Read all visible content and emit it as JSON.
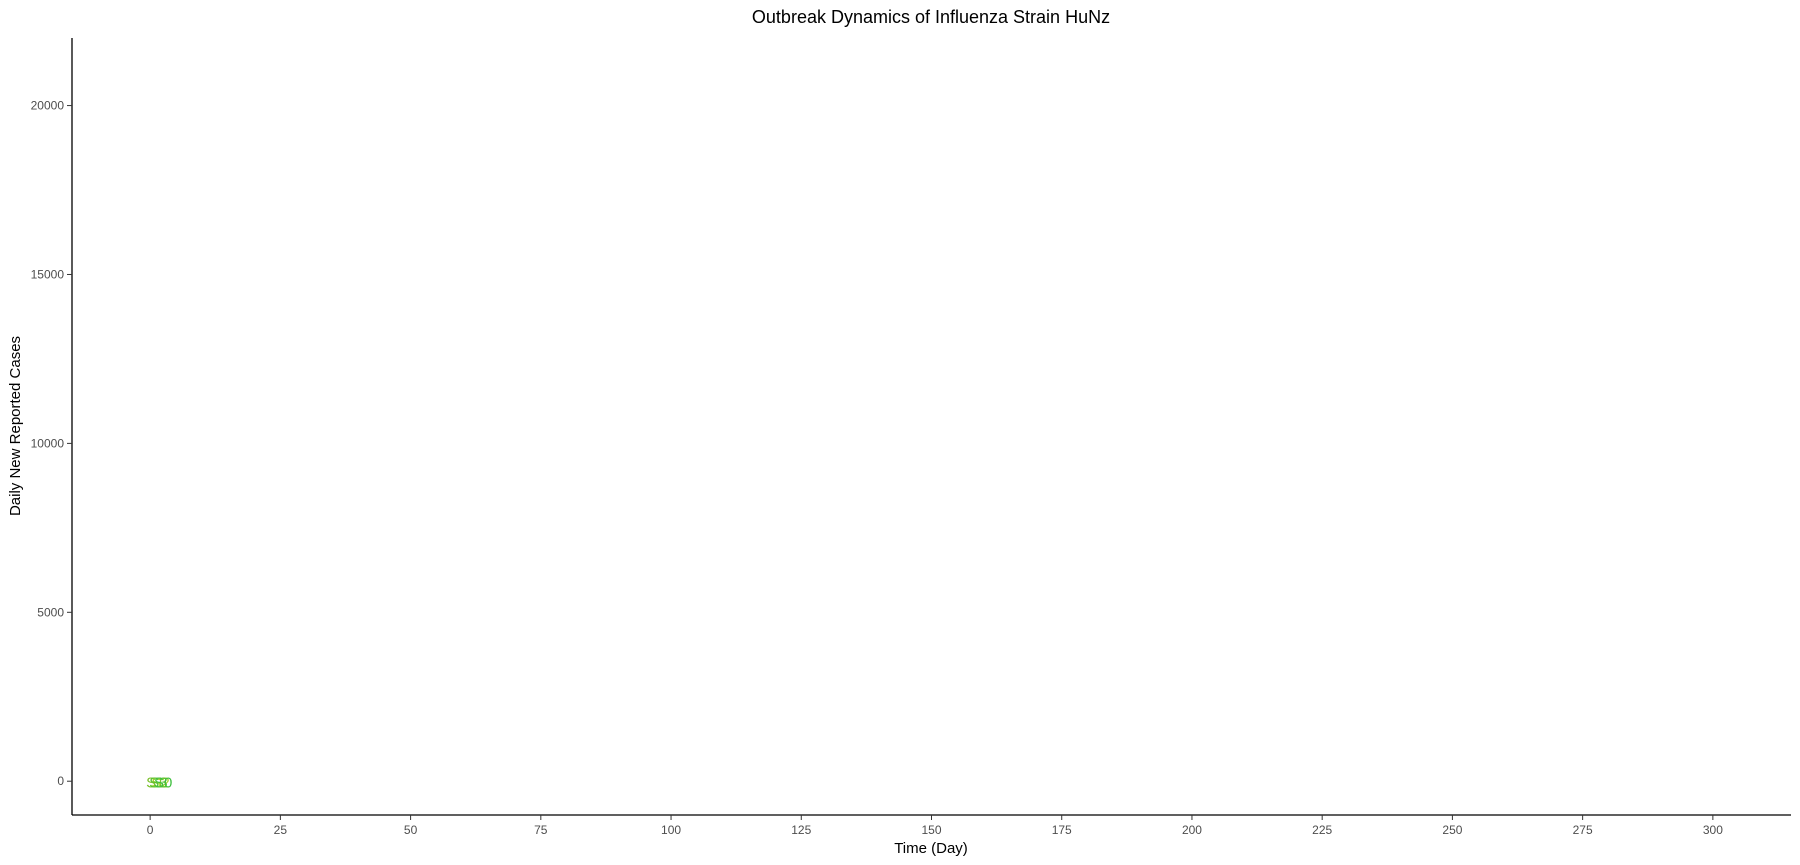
{
  "chart_data": {
    "type": "scatter",
    "title": "Outbreak Dynamics of Influenza Strain HuNz",
    "xlabel": "Time (Day)",
    "ylabel": "Daily New Reported Cases",
    "xlim": [
      -15,
      315
    ],
    "ylim": [
      -1000,
      22000
    ],
    "x_ticks": [
      0,
      25,
      50,
      75,
      100,
      125,
      150,
      175,
      200,
      225,
      250,
      275,
      300
    ],
    "y_ticks": [
      0,
      5000,
      10000,
      15000,
      20000
    ],
    "grid": false,
    "legend": "none",
    "points": [
      {
        "label": "S1",
        "x": 1,
        "y": -10,
        "color": "#7cc12e"
      },
      {
        "label": "S2",
        "x": 2,
        "y": -10,
        "color": "#a3d12a"
      },
      {
        "label": "S3",
        "x": 1.6,
        "y": -10,
        "color": "#57c12e"
      },
      {
        "label": "S0",
        "x": 2.5,
        "y": -10,
        "color": "#3fbf3f"
      }
    ]
  }
}
